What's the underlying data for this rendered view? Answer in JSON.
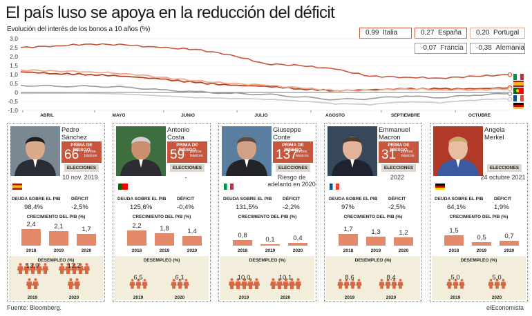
{
  "title": "El país luso se apoya en la reducción del déficit",
  "subtitle": "Evolución del interés de los bonos a 10 años (%)",
  "footer": {
    "source": "Fuente: Bloomberg.",
    "brand": "elEconomista"
  },
  "colors": {
    "accent": "#c8563c",
    "bar": "#e3896a",
    "person": "#d86843",
    "cream": "#f3eedb",
    "tag": "#ddd7cd"
  },
  "chart_data": {
    "type": "line",
    "xlabel": "",
    "ylabel": "",
    "ylim": [
      -1.0,
      3.0
    ],
    "yticks": [
      "3,0",
      "2,5",
      "2,0",
      "1,5",
      "1,0",
      "0,5",
      "0",
      "-0,5",
      "-1,0"
    ],
    "grid": true,
    "months": [
      "ABRIL",
      "MAYO",
      "JUNIO",
      "JULIO",
      "AGOSTO",
      "SEPTIEMBRE",
      "OCTUBRE"
    ],
    "x": [
      "1-abr",
      "15-abr",
      "1-may",
      "15-may",
      "1-jun",
      "15-jun",
      "1-jul",
      "15-jul",
      "1-ago",
      "15-ago",
      "1-sep",
      "15-sep",
      "1-oct",
      "15-oct",
      "22-oct"
    ],
    "series": [
      {
        "name": "Italia",
        "legend": "0,99",
        "values": [
          2.5,
          2.6,
          2.7,
          2.65,
          2.5,
          2.4,
          2.1,
          1.6,
          1.5,
          1.3,
          0.9,
          0.85,
          0.8,
          0.9,
          0.99
        ]
      },
      {
        "name": "España",
        "legend": "0,27",
        "values": [
          1.15,
          1.05,
          1.0,
          0.9,
          0.75,
          0.55,
          0.4,
          0.35,
          0.2,
          0.1,
          0.15,
          0.2,
          0.2,
          0.2,
          0.27
        ]
      },
      {
        "name": "Portugal",
        "legend": "0,20",
        "values": [
          1.25,
          1.2,
          1.15,
          1.05,
          0.85,
          0.65,
          0.5,
          0.4,
          0.25,
          0.1,
          0.12,
          0.2,
          0.15,
          0.15,
          0.2
        ]
      },
      {
        "name": "Francia",
        "legend": "-0,07",
        "values": [
          0.4,
          0.35,
          0.35,
          0.3,
          0.15,
          0.05,
          -0.05,
          -0.1,
          -0.25,
          -0.4,
          -0.35,
          -0.2,
          -0.3,
          -0.15,
          -0.07
        ]
      },
      {
        "name": "Alemania",
        "legend": "-0,38",
        "values": [
          -0.05,
          -0.05,
          -0.05,
          -0.1,
          -0.2,
          -0.3,
          -0.35,
          -0.4,
          -0.5,
          -0.65,
          -0.7,
          -0.55,
          -0.6,
          -0.45,
          -0.38
        ]
      }
    ]
  },
  "labels": {
    "risk": "PRIMA DE RIESGO",
    "units": "puntos\nbásicos",
    "elections": "ELECCIONES",
    "debt": "DEUDA SOBRE EL PIB",
    "deficit": "DÉFICIT",
    "growth": "CRECIMIENTO DEL PIB (%)",
    "unemployment": "DESEMPLEO (%)"
  },
  "panels": [
    {
      "name": "Pedro\nSánchez",
      "risk": "66",
      "election": "10 nov.\n2019",
      "debt": "98,4%",
      "deficit": "-2,5%",
      "growth": [
        {
          "year": "2018",
          "value": 2.4,
          "label": "2,4"
        },
        {
          "year": "2019",
          "value": 2.1,
          "label": "2,1"
        },
        {
          "year": "2020",
          "value": 1.7,
          "label": "1,7"
        }
      ],
      "unemp": [
        {
          "year": "2019",
          "value": 13.9,
          "label": "13,9"
        },
        {
          "year": "2020",
          "value": 13.2,
          "label": "13,2"
        }
      ],
      "flag": "es"
    },
    {
      "name": "Antonio\nCosta",
      "risk": "59",
      "election": "-",
      "debt": "125,6%",
      "deficit": "-0,4%",
      "growth": [
        {
          "year": "2018",
          "value": 2.2,
          "label": "2,2"
        },
        {
          "year": "2019",
          "value": 1.8,
          "label": "1,8"
        },
        {
          "year": "2020",
          "value": 1.4,
          "label": "1,4"
        }
      ],
      "unemp": [
        {
          "year": "2019",
          "value": 6.5,
          "label": "6,5"
        },
        {
          "year": "2020",
          "value": 6.1,
          "label": "6,1"
        }
      ],
      "flag": "pt"
    },
    {
      "name": "Giuseppe\nConte",
      "risk": "137",
      "election": "Riesgo de\nadelanto en\n2020",
      "debt": "131,5%",
      "deficit": "-2,2%",
      "growth": [
        {
          "year": "2018",
          "value": 0.8,
          "label": "0,8"
        },
        {
          "year": "2019",
          "value": 0.1,
          "label": "0,1"
        },
        {
          "year": "2020",
          "value": 0.4,
          "label": "0,4"
        }
      ],
      "unemp": [
        {
          "year": "2019",
          "value": 10.0,
          "label": "10,0"
        },
        {
          "year": "2020",
          "value": 10.1,
          "label": "10,1"
        }
      ],
      "flag": "it"
    },
    {
      "name": "Emmanuel\nMacron",
      "risk": "31",
      "election": "2022",
      "debt": "97%",
      "deficit": "-2,5%",
      "growth": [
        {
          "year": "2018",
          "value": 1.7,
          "label": "1,7"
        },
        {
          "year": "2019",
          "value": 1.3,
          "label": "1,3"
        },
        {
          "year": "2020",
          "value": 1.2,
          "label": "1,2"
        }
      ],
      "unemp": [
        {
          "year": "2019",
          "value": 8.6,
          "label": "8,6"
        },
        {
          "year": "2020",
          "value": 8.4,
          "label": "8,4"
        }
      ],
      "flag": "fr"
    },
    {
      "name": "Angela\nMerkel",
      "risk": "",
      "election": "24 octubre\n2021",
      "debt": "64,1%",
      "deficit": "1,9%",
      "growth": [
        {
          "year": "2018",
          "value": 1.5,
          "label": "1,5"
        },
        {
          "year": "2019",
          "value": 0.5,
          "label": "0,5"
        },
        {
          "year": "2020",
          "value": 0.7,
          "label": "0,7"
        }
      ],
      "unemp": [
        {
          "year": "2019",
          "value": 5.0,
          "label": "5,0"
        },
        {
          "year": "2020",
          "value": 5.0,
          "label": "5,0"
        }
      ],
      "flag": "de"
    }
  ]
}
